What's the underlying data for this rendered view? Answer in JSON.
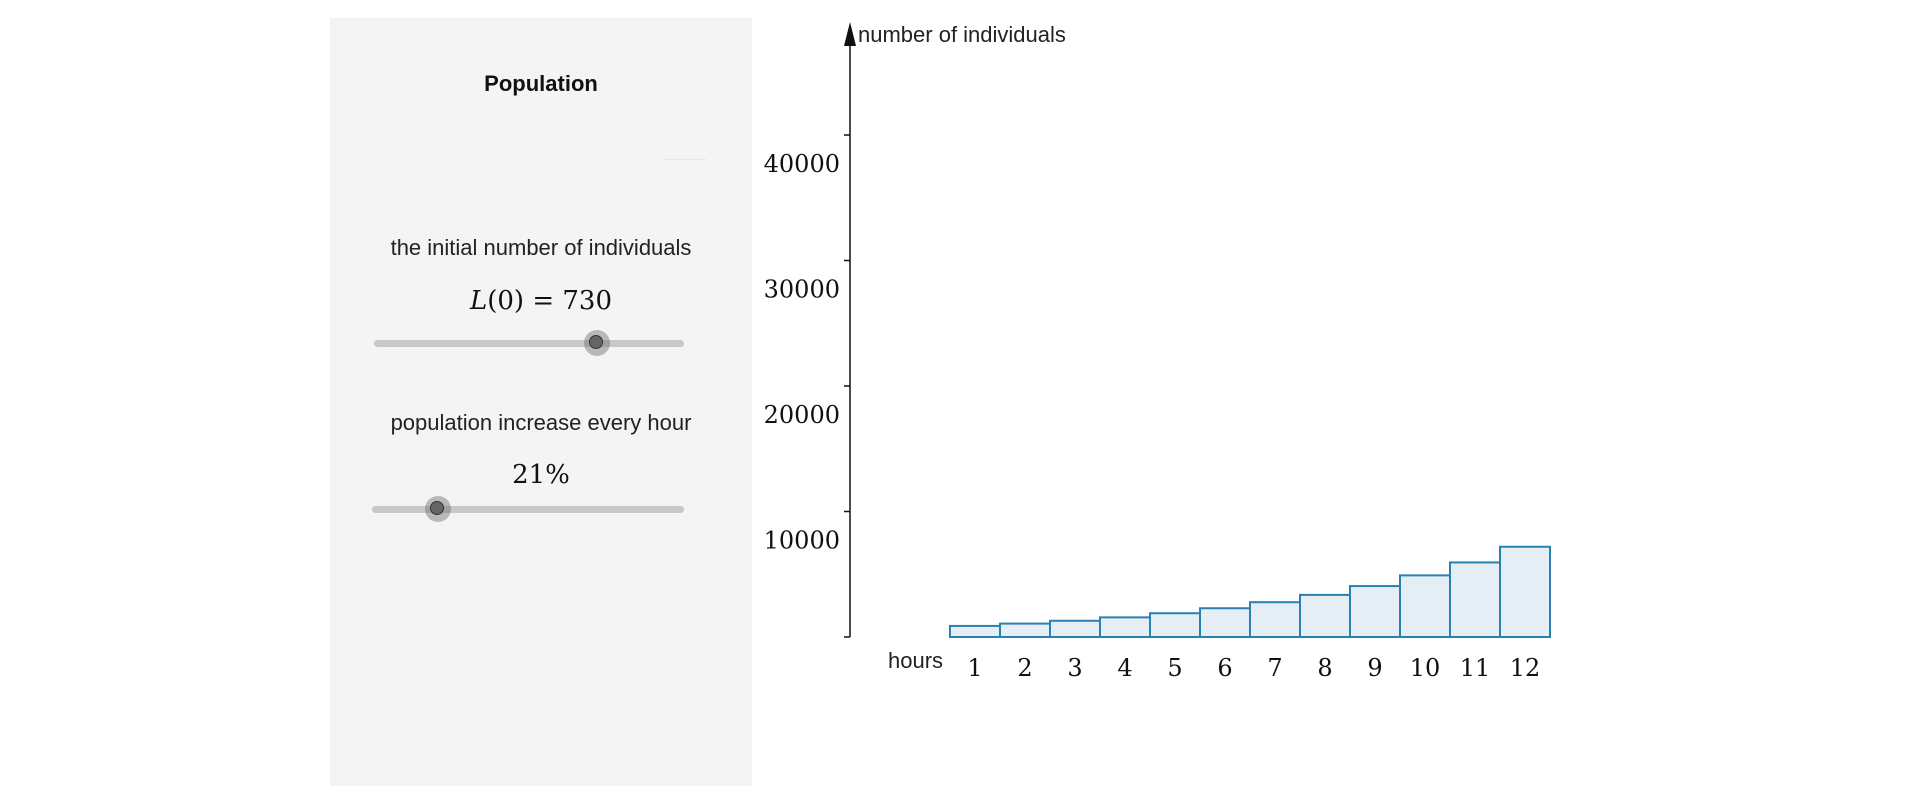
{
  "panel": {
    "title": "Population",
    "initial": {
      "label": "the initial number of individuals",
      "var": "L",
      "arg": "(0) = ",
      "value": "730",
      "slider_fraction": 0.72
    },
    "growth": {
      "label": "population increase every hour",
      "value_text": "21%",
      "slider_fraction": 0.21
    }
  },
  "colors": {
    "bar_fill": "#e6eef5",
    "bar_stroke": "#2a80b0",
    "axis": "#111111"
  },
  "chart_data": {
    "type": "bar",
    "ylabel": "number of individuals",
    "xlabel": "hours",
    "categories": [
      "1",
      "2",
      "3",
      "4",
      "5",
      "6",
      "7",
      "8",
      "9",
      "10",
      "11",
      "12"
    ],
    "values": [
      883,
      1069,
      1293,
      1565,
      1894,
      2291,
      2772,
      3354,
      4059,
      4911,
      5942,
      7190
    ],
    "yticks": [
      10000,
      20000,
      30000,
      40000
    ],
    "ytick_labels": [
      "10000",
      "20000",
      "30000",
      "40000"
    ],
    "ylim": [
      0,
      49000
    ]
  }
}
